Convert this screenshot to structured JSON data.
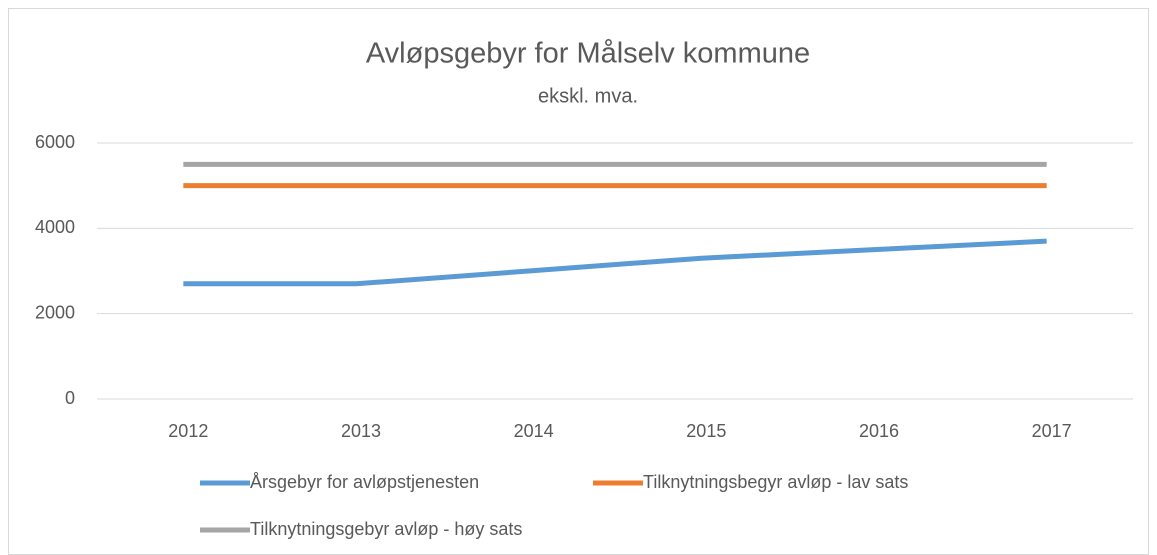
{
  "chart_data": {
    "type": "line",
    "title": "Avløpsgebyr for Målselv kommune",
    "subtitle": "ekskl. mva.",
    "categories": [
      "2012",
      "2013",
      "2014",
      "2015",
      "2016",
      "2017"
    ],
    "series": [
      {
        "name": "Årsgebyr for avløpstjenesten",
        "color": "#5b9bd5",
        "values": [
          2700,
          2700,
          3000,
          3300,
          3500,
          3700
        ]
      },
      {
        "name": "Tilknytningsbegyr avløp - lav sats",
        "color": "#ed7d31",
        "values": [
          5000,
          5000,
          5000,
          5000,
          5000,
          5000
        ]
      },
      {
        "name": "Tilknytningsgebyr avløp - høy sats",
        "color": "#a5a5a5",
        "values": [
          5500,
          5500,
          5500,
          5500,
          5500,
          5500
        ]
      }
    ],
    "ylim": [
      0,
      6000
    ],
    "yticks": [
      0,
      2000,
      4000,
      6000
    ],
    "grid": true,
    "legend": "bottom"
  }
}
